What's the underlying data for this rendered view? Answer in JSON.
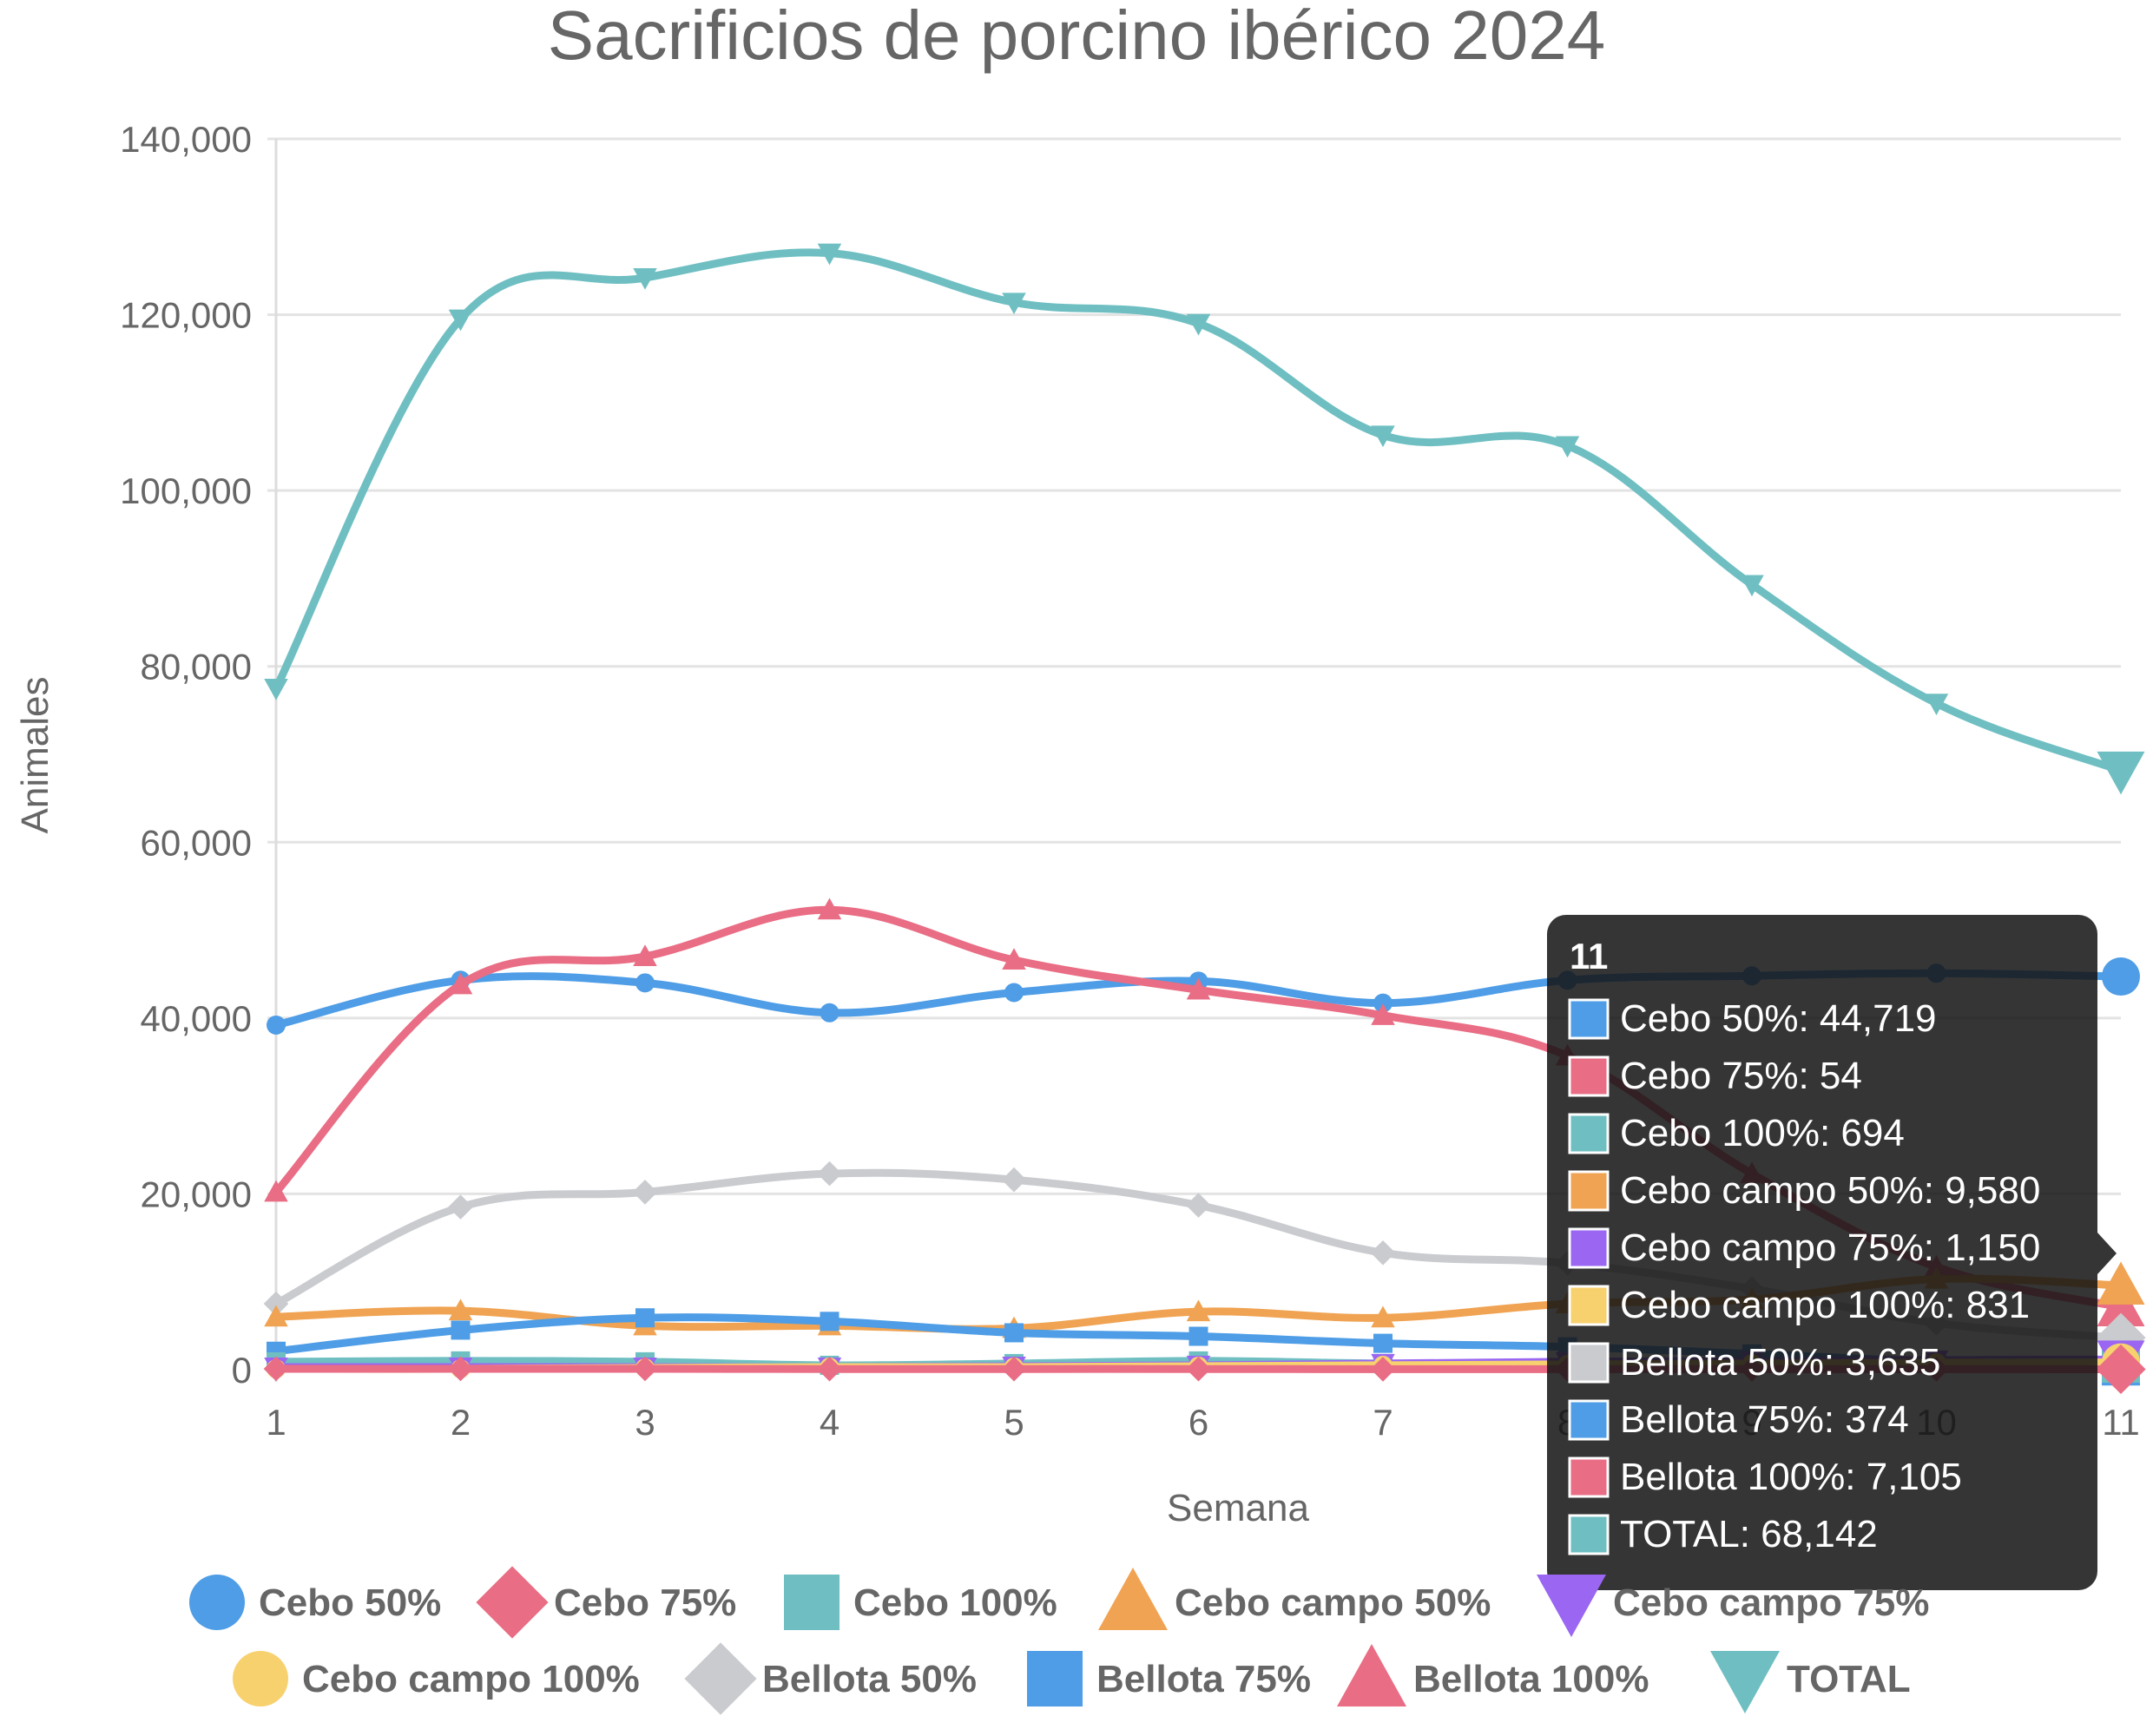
{
  "chart_data": {
    "type": "line",
    "title": "Sacrificios de porcino ibérico 2024",
    "xlabel": "Semana",
    "ylabel": "Animales",
    "categories": [
      "1",
      "2",
      "3",
      "4",
      "5",
      "6",
      "7",
      "8",
      "9",
      "10",
      "11"
    ],
    "ylim": [
      0,
      140000
    ],
    "yticks": [
      0,
      20000,
      40000,
      60000,
      80000,
      100000,
      120000,
      140000
    ],
    "ytick_labels": [
      "0",
      "20,000",
      "40,000",
      "60,000",
      "80,000",
      "100,000",
      "120,000",
      "140,000"
    ],
    "grid": true,
    "legend_position": "bottom",
    "series": [
      {
        "name": "Cebo 50%",
        "color": "#4e9de6",
        "marker": "circle",
        "values": [
          39200,
          44300,
          44000,
          40600,
          42900,
          44200,
          41700,
          44300,
          44800,
          45100,
          44719
        ]
      },
      {
        "name": "Cebo 75%",
        "color": "#e96d84",
        "marker": "diamond",
        "values": [
          100,
          100,
          100,
          80,
          80,
          80,
          60,
          60,
          60,
          60,
          54
        ]
      },
      {
        "name": "Cebo 100%",
        "color": "#6fbfc2",
        "marker": "square",
        "values": [
          900,
          1000,
          900,
          500,
          700,
          1000,
          700,
          700,
          700,
          700,
          694
        ]
      },
      {
        "name": "Cebo campo 50%",
        "color": "#f0a352",
        "marker": "triangle",
        "values": [
          6000,
          6700,
          5000,
          5000,
          4700,
          6600,
          5900,
          7500,
          8000,
          10300,
          9580
        ]
      },
      {
        "name": "Cebo campo 75%",
        "color": "#9a66f2",
        "marker": "triangle-down",
        "values": [
          300,
          300,
          300,
          300,
          400,
          500,
          700,
          900,
          1000,
          1100,
          1150
        ]
      },
      {
        "name": "Cebo campo 100%",
        "color": "#f8d16f",
        "marker": "circle",
        "values": [
          100,
          100,
          200,
          300,
          300,
          400,
          500,
          600,
          700,
          800,
          831
        ]
      },
      {
        "name": "Bellota 50%",
        "color": "#c9cbcf",
        "marker": "diamond",
        "values": [
          7500,
          18500,
          20200,
          22300,
          21600,
          18700,
          13300,
          12100,
          9200,
          5300,
          3635
        ]
      },
      {
        "name": "Bellota 75%",
        "color": "#4e9de6",
        "marker": "square",
        "values": [
          2100,
          4500,
          5900,
          5500,
          4200,
          3800,
          3000,
          2600,
          1800,
          900,
          374
        ]
      },
      {
        "name": "Bellota 100%",
        "color": "#e96d84",
        "marker": "triangle",
        "values": [
          20200,
          43800,
          47000,
          52300,
          46600,
          43200,
          40300,
          35700,
          22300,
          11700,
          7105
        ]
      },
      {
        "name": "TOTAL",
        "color": "#6fbfc2",
        "marker": "triangle-down",
        "values": [
          77500,
          119500,
          124200,
          127000,
          121400,
          119000,
          106300,
          105100,
          89300,
          75800,
          68142
        ]
      }
    ],
    "tooltip": {
      "title": "11",
      "lines": [
        "Cebo 50%: 44,719",
        "Cebo 75%: 54",
        "Cebo 100%: 694",
        "Cebo campo 50%: 9,580",
        "Cebo campo 75%: 1,150",
        "Cebo campo 100%: 831",
        "Bellota 50%: 3,635",
        "Bellota 75%: 374",
        "Bellota 100%: 7,105",
        "TOTAL: 68,142"
      ],
      "colors": [
        "#4e9de6",
        "#e96d84",
        "#6fbfc2",
        "#f0a352",
        "#9a66f2",
        "#f8d16f",
        "#c9cbcf",
        "#4e9de6",
        "#e96d84",
        "#6fbfc2"
      ]
    }
  }
}
